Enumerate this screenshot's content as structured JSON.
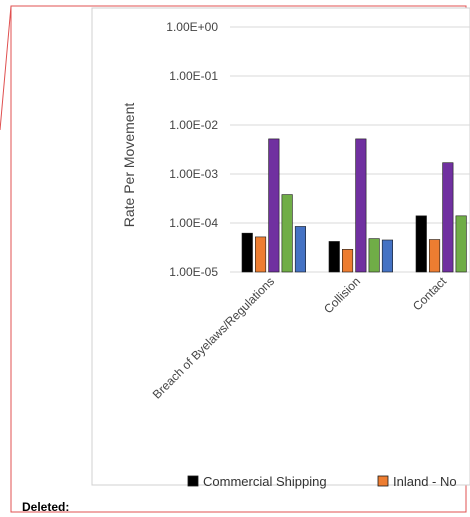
{
  "revision": {
    "deleted_label": "Deleted:",
    "border_color": "#e05050"
  },
  "chart_data": {
    "type": "bar",
    "title": "",
    "xlabel": "",
    "ylabel": "Rate Per Movement",
    "yscale": "log",
    "ylim": [
      1e-05,
      1
    ],
    "yticks": [
      1,
      0.1,
      0.01,
      0.001,
      0.0001,
      1e-05
    ],
    "ytick_labels": [
      "1.00E+00",
      "1.00E-01",
      "1.00E-02",
      "1.00E-03",
      "1.00E-04",
      "1.00E-05"
    ],
    "grid": true,
    "categories": [
      "Breach of Byelaws/Regulations",
      "Collision",
      "Contact"
    ],
    "series": [
      {
        "name": "Commercial Shipping",
        "color": "#000000",
        "values": [
          6.2e-05,
          4.2e-05,
          0.00014
        ]
      },
      {
        "name": "Inland - No",
        "color": "#ed7d31",
        "values": [
          5.2e-05,
          2.9e-05,
          4.6e-05
        ]
      },
      {
        "name": "",
        "color": "#7030a0",
        "values": [
          0.0052,
          0.0052,
          0.0017
        ]
      },
      {
        "name": "",
        "color": "#70ad47",
        "values": [
          0.00038,
          4.8e-05,
          0.00014
        ]
      },
      {
        "name": "",
        "color": "#4472c4",
        "values": [
          8.5e-05,
          4.5e-05,
          null
        ]
      }
    ],
    "legend": {
      "placement": "bottom",
      "entries": [
        "Commercial Shipping",
        "Inland - No"
      ]
    }
  }
}
